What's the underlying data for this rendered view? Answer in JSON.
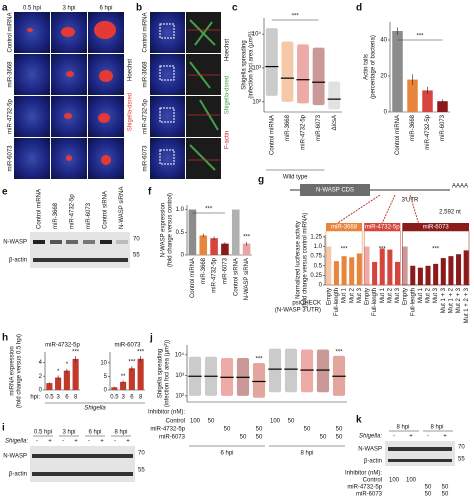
{
  "figure": {
    "panel_letters": [
      "a",
      "b",
      "c",
      "d",
      "e",
      "f",
      "g",
      "h",
      "i",
      "j",
      "k"
    ]
  },
  "panel_a": {
    "columns": [
      "0.5 hpi",
      "3 hpi",
      "6 hpi"
    ],
    "rows": [
      "Control miRNA",
      "miR-3668",
      "miR-4732-5p",
      "miR-6073"
    ],
    "stain": [
      "Hoechst",
      "Shigella-dsred"
    ]
  },
  "panel_b": {
    "rows": [
      "Control miRNA",
      "miR-3668",
      "miR-4732-5p",
      "miR-6073"
    ],
    "stain": [
      "Hoechst",
      "Shigella-dsred",
      "F-actin"
    ]
  },
  "panel_e": {
    "lanes": [
      "Control miRNA",
      "miR-3668",
      "miR-4732-5p",
      "miR-6073",
      "Control siRNA",
      "N-WASP siRNA"
    ],
    "proteins": [
      "N-WASP",
      "β-actin"
    ],
    "markers": [
      "70",
      "55"
    ]
  },
  "panel_g": {
    "construct": "N-WASP CDS",
    "utr": "3′UTR",
    "polya": "AAAA",
    "length": "2,592 nt"
  },
  "panel_h": {
    "x_label": "hpi:",
    "condition": "Shigella"
  },
  "panel_i": {
    "timepoints": [
      "0.5 hpi",
      "3 hpi",
      "6 hpi",
      "8 hpi"
    ],
    "condition": "Shigella:",
    "signs": [
      "-",
      "+",
      "-",
      "+",
      "-",
      "+",
      "-",
      "+"
    ],
    "proteins": [
      "N-WASP",
      "β-actin"
    ],
    "markers": [
      "70",
      "55"
    ]
  },
  "panel_j": {
    "inhibitor_label": "Inhibitor (nM):",
    "rows": [
      {
        "name": "Control",
        "cells": [
          "100",
          "50",
          null,
          null,
          null,
          "100",
          "50",
          null,
          null,
          null
        ]
      },
      {
        "name": "miR-4732-5p",
        "cells": [
          null,
          null,
          "50",
          null,
          "50",
          null,
          null,
          "50",
          null,
          "50"
        ]
      },
      {
        "name": "miR-6073",
        "cells": [
          null,
          null,
          null,
          "50",
          "50",
          null,
          null,
          null,
          "50",
          "50"
        ]
      }
    ],
    "times": [
      "6 hpi",
      "8 hpi"
    ]
  },
  "panel_k": {
    "timepoints": [
      "8 hpi",
      "8 hpi"
    ],
    "condition": "Shigella:",
    "signs": [
      "-",
      "+",
      "-",
      "+"
    ],
    "proteins": [
      "N-WASP",
      "β-actin"
    ],
    "markers": [
      "70",
      "55"
    ],
    "inhibitor_label": "Inhibitor (nM):",
    "rows": [
      {
        "name": "Control",
        "cells": [
          "100",
          "100",
          null,
          null
        ]
      },
      {
        "name": "miR-4732-5p",
        "cells": [
          null,
          null,
          "50",
          "50"
        ]
      },
      {
        "name": "miR-6073",
        "cells": [
          null,
          null,
          "50",
          "50"
        ]
      }
    ]
  },
  "chart_data": [
    {
      "type": "strip",
      "y_label": [
        "Shigella spreading",
        "(infection foci area (µm²))"
      ],
      "categories": [
        "Control miRNA",
        "miR-3668",
        "miR-4732-5p",
        "miR-6073",
        "ΔicsA"
      ],
      "colors": [
        "#8c8c8c",
        "#e8853d",
        "#d6453d",
        "#8b1a1a",
        "#bdbdbd"
      ],
      "medians": [
        1100,
        500,
        450,
        380,
        120
      ],
      "ranges": [
        [
          150,
          15000
        ],
        [
          100,
          6000
        ],
        [
          90,
          5000
        ],
        [
          80,
          4000
        ],
        [
          60,
          400
        ]
      ],
      "log": true,
      "ylim": [
        50,
        30000
      ],
      "yticks": [
        {
          "value": 100,
          "label": "10²"
        },
        {
          "value": 1000,
          "label": "10³"
        },
        {
          "value": 10000,
          "label": "10⁴"
        }
      ],
      "group_label": "Wild type",
      "annotation": "***"
    },
    {
      "type": "bar",
      "y_label": [
        "Actin tails",
        "(percentage of bacteria)"
      ],
      "categories": [
        "Control miRNA",
        "miR-3668",
        "miR-4732-5p",
        "miR-6073"
      ],
      "values": [
        45,
        18,
        12,
        6
      ],
      "errors": [
        2,
        3,
        2,
        1
      ],
      "colors": [
        "#8c8c8c",
        "#e8853d",
        "#d6453d",
        "#8b1a1a"
      ],
      "ylim": [
        0,
        50
      ],
      "yticks": [
        0,
        20,
        40
      ],
      "annotation": "***"
    },
    {
      "type": "bar",
      "y_label": [
        "N-WASP expression",
        "(fold change versus control)"
      ],
      "categories": [
        "Control miRNA",
        "miR-3668",
        "miR-4732-5p",
        "miR-6073",
        "Control siRNA",
        "N-WASP siRNA"
      ],
      "values": [
        1,
        0.43,
        0.37,
        0.25,
        1,
        0.25
      ],
      "errors": [
        0,
        0.04,
        0.04,
        0.03,
        0,
        0.04
      ],
      "colors": [
        "#8c8c8c",
        "#e8853d",
        "#d6453d",
        "#8b1a1a",
        "#b0b0b0",
        "#e9a3a3"
      ],
      "ylim": [
        0,
        1.1
      ],
      "yticks": [
        0,
        0.5,
        {
          "value": 1,
          "label": "1.0"
        }
      ],
      "annotations": [
        "***",
        "***"
      ]
    },
    {
      "type": "grouped_bar",
      "y_label": [
        "Normalized luciferase activity",
        "(fold change versus control miRNA)"
      ],
      "x_label": [
        "psiCHECK",
        "(N-WASP 3′UTR)"
      ],
      "ylim": [
        0,
        1.3
      ],
      "yticks": [
        0,
        0.25,
        0.5,
        0.75,
        {
          "value": 1,
          "label": "1.0"
        },
        1.25
      ],
      "groups": [
        {
          "name": "miR-3668",
          "color": "#e8853d",
          "categories": [
            "Empty",
            "Full-length",
            "Mut 1",
            "Mut 2",
            "Mut 3"
          ],
          "values": [
            1,
            0.62,
            0.75,
            0.72,
            0.82
          ],
          "annotation": "***"
        },
        {
          "name": "miR-4732-5p",
          "color": "#d6453d",
          "categories": [
            "Empty",
            "Full-length",
            "Mut 1",
            "Mut 2",
            "Mut 3"
          ],
          "values": [
            1,
            0.6,
            0.95,
            0.92,
            0.6
          ],
          "annotation": "***"
        },
        {
          "name": "miR-6073",
          "color": "#8b1a1a",
          "categories": [
            "Empty",
            "Full-length",
            "Mut 1",
            "Mut 2",
            "Mut 3",
            "Mut 1 + 3",
            "Mut 1 + 2",
            "Mut 2 + 3",
            "Mut 1 + 2 + 3"
          ],
          "values": [
            1,
            0.5,
            0.45,
            0.5,
            0.55,
            0.7,
            0.75,
            0.8,
            0.9
          ],
          "annotation": "***"
        }
      ]
    },
    {
      "type": "bar",
      "title": "miR-4732-5p",
      "categories": [
        "0.5",
        "3",
        "6",
        "8"
      ],
      "values": [
        1,
        1.8,
        2.8,
        4.5
      ],
      "errors": [
        0.1,
        0.3,
        0.3,
        0.4
      ],
      "color": "#c0392b",
      "ylim": [
        0,
        5.5
      ],
      "yticks": [
        0,
        2,
        4
      ],
      "y_label": [
        "miRNA expression",
        "(fold change versus 0.5 hpi)"
      ],
      "annotations": [
        null,
        "*",
        "*",
        "***"
      ]
    },
    {
      "type": "bar",
      "title": "miR-6073",
      "categories": [
        "0.5",
        "3",
        "6",
        "8"
      ],
      "values": [
        1,
        3,
        8,
        11.5
      ],
      "errors": [
        0.2,
        0.5,
        0.8,
        1
      ],
      "color": "#c0392b",
      "ylim": [
        0,
        14
      ],
      "yticks": [
        0,
        5,
        10
      ],
      "annotations": [
        null,
        "**",
        "***",
        "***"
      ]
    },
    {
      "type": "strip",
      "y_label": [
        "Shigella spreading",
        "(infection foci area (µm²))"
      ],
      "colors": [
        "#8c8c8c",
        "#8c8c8c",
        "#d6453d",
        "#8b1a1a",
        "#c0392b",
        "#8c8c8c",
        "#8c8c8c",
        "#d6453d",
        "#8b1a1a",
        "#c0392b"
      ],
      "medians": [
        900,
        900,
        800,
        800,
        500,
        2000,
        2000,
        1800,
        1800,
        900
      ],
      "ranges": [
        [
          100,
          8000
        ],
        [
          100,
          8000
        ],
        [
          100,
          7000
        ],
        [
          100,
          7000
        ],
        [
          80,
          4000
        ],
        [
          150,
          20000
        ],
        [
          150,
          20000
        ],
        [
          150,
          18000
        ],
        [
          150,
          18000
        ],
        [
          100,
          9000
        ]
      ],
      "log": true,
      "ylim": [
        50,
        30000
      ],
      "yticks": [
        {
          "value": 100,
          "label": "10²"
        },
        {
          "value": 1000,
          "label": "10³"
        },
        {
          "value": 10000,
          "label": "10⁴"
        }
      ],
      "annotations": [
        null,
        null,
        null,
        null,
        "***",
        null,
        null,
        null,
        null,
        "***"
      ]
    }
  ]
}
